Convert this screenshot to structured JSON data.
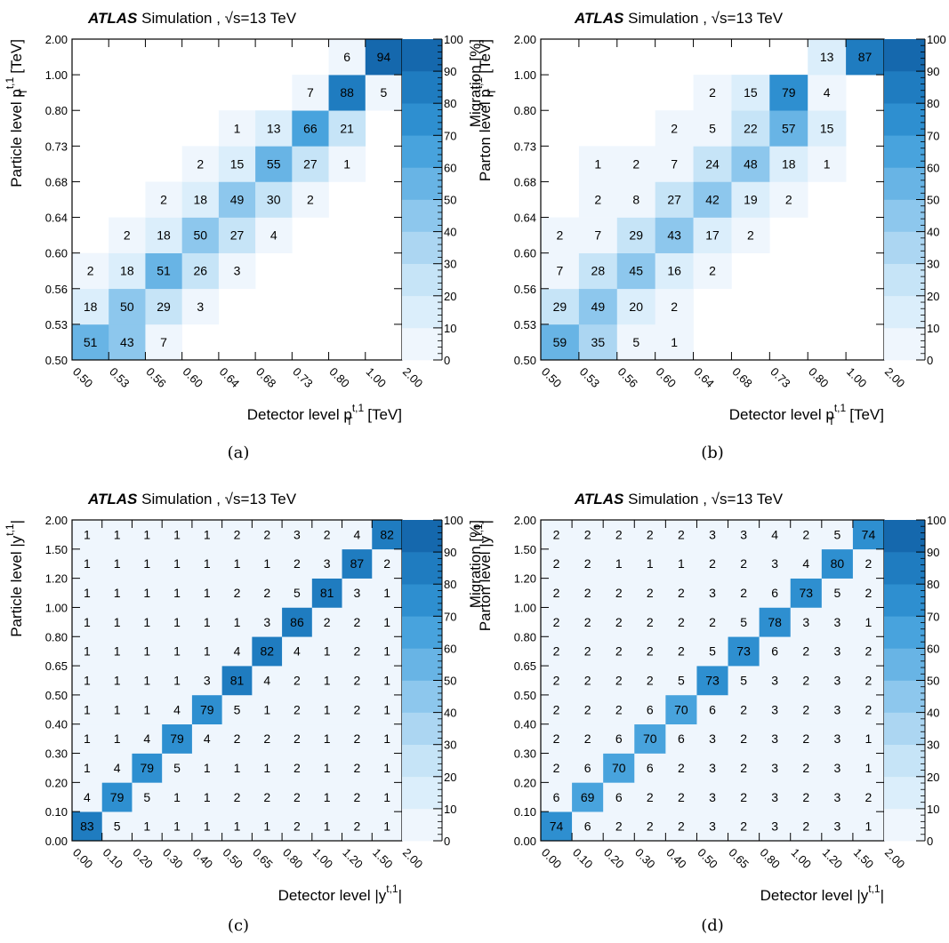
{
  "palette": [
    "#ffffff",
    "#eff6fd",
    "#dbeefb",
    "#c6e4f7",
    "#acd6f2",
    "#8dc7ed",
    "#68b4e5",
    "#48a3dd",
    "#2e8fd0",
    "#1f7cc0",
    "#1568ad"
  ],
  "chart_data": [
    {
      "type": "heatmap",
      "panel_label": "(a)",
      "title_bold": "ATLAS",
      "title_rest": " Simulation ,",
      "title_energy": "s=13 TeV",
      "xlabel": "Detector level p",
      "xlabel_sub": "T",
      "xlabel_sup": "t,1",
      "xlabel_unit": " [TeV]",
      "ylabel": "Particle level p",
      "ylabel_sub": "T",
      "ylabel_sup": "t,1",
      "ylabel_unit": " [TeV]",
      "zlabel": "Migration [%]",
      "zlim": [
        0,
        100
      ],
      "z_ticks": [
        "0",
        "10",
        "20",
        "30",
        "40",
        "50",
        "60",
        "70",
        "80",
        "90",
        "100"
      ],
      "x_edges": [
        "0.50",
        "0.53",
        "0.56",
        "0.60",
        "0.64",
        "0.68",
        "0.73",
        "0.80",
        "1.00",
        "2.00"
      ],
      "y_edges": [
        "0.50",
        "0.53",
        "0.56",
        "0.60",
        "0.64",
        "0.68",
        "0.73",
        "0.80",
        "1.00",
        "2.00"
      ],
      "values": [
        [
          51,
          43,
          7,
          null,
          null,
          null,
          null,
          null,
          null
        ],
        [
          18,
          50,
          29,
          3,
          null,
          null,
          null,
          null,
          null
        ],
        [
          2,
          18,
          51,
          26,
          3,
          null,
          null,
          null,
          null
        ],
        [
          null,
          2,
          18,
          50,
          27,
          4,
          null,
          null,
          null
        ],
        [
          null,
          null,
          2,
          18,
          49,
          30,
          2,
          null,
          null
        ],
        [
          null,
          null,
          null,
          2,
          15,
          55,
          27,
          1,
          null
        ],
        [
          null,
          null,
          null,
          null,
          1,
          13,
          66,
          21,
          null
        ],
        [
          null,
          null,
          null,
          null,
          null,
          null,
          7,
          88,
          5
        ],
        [
          null,
          null,
          null,
          null,
          null,
          null,
          null,
          6,
          94
        ]
      ]
    },
    {
      "type": "heatmap",
      "panel_label": "(b)",
      "title_bold": "ATLAS",
      "title_rest": " Simulation ,",
      "title_energy": "s=13 TeV",
      "xlabel": "Detector level p",
      "xlabel_sub": "T",
      "xlabel_sup": "t,1",
      "xlabel_unit": " [TeV]",
      "ylabel": "Parton level p",
      "ylabel_sub": "T",
      "ylabel_sup": "t,1",
      "ylabel_unit": " [TeV]",
      "zlabel": "Migration [%]",
      "zlim": [
        0,
        100
      ],
      "z_ticks": [
        "0",
        "10",
        "20",
        "30",
        "40",
        "50",
        "60",
        "70",
        "80",
        "90",
        "100"
      ],
      "x_edges": [
        "0.50",
        "0.53",
        "0.56",
        "0.60",
        "0.64",
        "0.68",
        "0.73",
        "0.80",
        "1.00",
        "2.00"
      ],
      "y_edges": [
        "0.50",
        "0.53",
        "0.56",
        "0.60",
        "0.64",
        "0.68",
        "0.73",
        "0.80",
        "1.00",
        "2.00"
      ],
      "values": [
        [
          59,
          35,
          5,
          1,
          null,
          null,
          null,
          null,
          null
        ],
        [
          29,
          49,
          20,
          2,
          null,
          null,
          null,
          null,
          null
        ],
        [
          7,
          28,
          45,
          16,
          2,
          null,
          null,
          null,
          null
        ],
        [
          2,
          7,
          29,
          43,
          17,
          2,
          null,
          null,
          null
        ],
        [
          null,
          2,
          8,
          27,
          42,
          19,
          2,
          null,
          null
        ],
        [
          null,
          1,
          2,
          7,
          24,
          48,
          18,
          1,
          null
        ],
        [
          null,
          null,
          null,
          2,
          5,
          22,
          57,
          15,
          null
        ],
        [
          null,
          null,
          null,
          null,
          2,
          15,
          79,
          4,
          null
        ],
        [
          null,
          null,
          null,
          null,
          null,
          null,
          null,
          13,
          87
        ]
      ]
    },
    {
      "type": "heatmap",
      "panel_label": "(c)",
      "title_bold": "ATLAS",
      "title_rest": " Simulation ,",
      "title_energy": "s=13 TeV",
      "xlabel": "Detector level |y",
      "xlabel_sub": "",
      "xlabel_sup": "t,1",
      "xlabel_unit": "|",
      "ylabel": "Particle level |y",
      "ylabel_sub": "",
      "ylabel_sup": "t,1",
      "ylabel_unit": "|",
      "zlabel": "Migration [%]",
      "zlim": [
        0,
        100
      ],
      "z_ticks": [
        "0",
        "10",
        "20",
        "30",
        "40",
        "50",
        "60",
        "70",
        "80",
        "90",
        "100"
      ],
      "x_edges": [
        "0.00",
        "0.10",
        "0.20",
        "0.30",
        "0.40",
        "0.50",
        "0.65",
        "0.80",
        "1.00",
        "1.20",
        "1.50",
        "2.00"
      ],
      "y_edges": [
        "0.00",
        "0.10",
        "0.20",
        "0.30",
        "0.40",
        "0.50",
        "0.65",
        "0.80",
        "1.00",
        "1.20",
        "1.50",
        "2.00"
      ],
      "values": [
        [
          83,
          5,
          1,
          1,
          1,
          1,
          1,
          2,
          1,
          2,
          1
        ],
        [
          4,
          79,
          5,
          1,
          1,
          2,
          2,
          2,
          1,
          2,
          1
        ],
        [
          1,
          4,
          79,
          5,
          1,
          1,
          1,
          2,
          1,
          2,
          1
        ],
        [
          1,
          1,
          4,
          79,
          4,
          2,
          2,
          2,
          1,
          2,
          1
        ],
        [
          1,
          1,
          1,
          4,
          79,
          5,
          1,
          2,
          1,
          2,
          1
        ],
        [
          1,
          1,
          1,
          1,
          3,
          81,
          4,
          2,
          1,
          2,
          1
        ],
        [
          1,
          1,
          1,
          1,
          1,
          4,
          82,
          4,
          1,
          2,
          1
        ],
        [
          1,
          1,
          1,
          1,
          1,
          1,
          3,
          86,
          2,
          2,
          1
        ],
        [
          1,
          1,
          1,
          1,
          1,
          2,
          2,
          5,
          81,
          3,
          1
        ],
        [
          1,
          1,
          1,
          1,
          1,
          1,
          1,
          2,
          3,
          87,
          2
        ],
        [
          1,
          1,
          1,
          1,
          1,
          2,
          2,
          3,
          2,
          4,
          82
        ]
      ]
    },
    {
      "type": "heatmap",
      "panel_label": "(d)",
      "title_bold": "ATLAS",
      "title_rest": " Simulation ,",
      "title_energy": "s=13 TeV",
      "xlabel": "Detector level |y",
      "xlabel_sub": "",
      "xlabel_sup": "t,1",
      "xlabel_unit": "|",
      "ylabel": "Parton level |y",
      "ylabel_sub": "",
      "ylabel_sup": "t,1",
      "ylabel_unit": "|",
      "zlabel": "Migration [%]",
      "zlim": [
        0,
        100
      ],
      "z_ticks": [
        "0",
        "10",
        "20",
        "30",
        "40",
        "50",
        "60",
        "70",
        "80",
        "90",
        "100"
      ],
      "x_edges": [
        "0.00",
        "0.10",
        "0.20",
        "0.30",
        "0.40",
        "0.50",
        "0.65",
        "0.80",
        "1.00",
        "1.20",
        "1.50",
        "2.00"
      ],
      "y_edges": [
        "0.00",
        "0.10",
        "0.20",
        "0.30",
        "0.40",
        "0.50",
        "0.65",
        "0.80",
        "1.00",
        "1.20",
        "1.50",
        "2.00"
      ],
      "values": [
        [
          74,
          6,
          2,
          2,
          2,
          3,
          2,
          3,
          2,
          3,
          1
        ],
        [
          6,
          69,
          6,
          2,
          2,
          3,
          2,
          3,
          2,
          3,
          2
        ],
        [
          2,
          6,
          70,
          6,
          2,
          3,
          2,
          3,
          2,
          3,
          1
        ],
        [
          2,
          2,
          6,
          70,
          6,
          3,
          2,
          3,
          2,
          3,
          1
        ],
        [
          2,
          2,
          2,
          6,
          70,
          6,
          2,
          3,
          2,
          3,
          2
        ],
        [
          2,
          2,
          2,
          2,
          5,
          73,
          5,
          3,
          2,
          3,
          2
        ],
        [
          2,
          2,
          2,
          2,
          2,
          5,
          73,
          6,
          2,
          3,
          2
        ],
        [
          2,
          2,
          2,
          2,
          2,
          2,
          5,
          78,
          3,
          3,
          1
        ],
        [
          2,
          2,
          2,
          2,
          2,
          3,
          2,
          6,
          73,
          5,
          2
        ],
        [
          2,
          2,
          1,
          1,
          1,
          2,
          2,
          3,
          4,
          80,
          2
        ],
        [
          2,
          2,
          2,
          2,
          2,
          3,
          3,
          4,
          2,
          5,
          74
        ]
      ]
    }
  ]
}
